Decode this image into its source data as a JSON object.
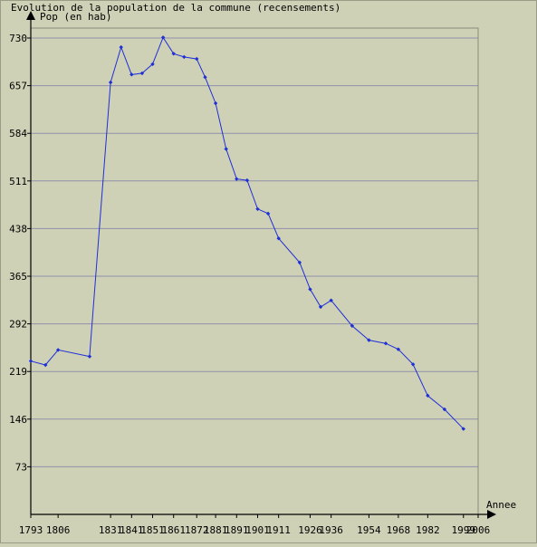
{
  "chart_data": {
    "type": "line",
    "title": "Evolution de la population de la commune (recensements)",
    "ylabel": "Pop (en hab)",
    "xlabel": "Annee",
    "yticks": [
      73,
      146,
      219,
      292,
      365,
      438,
      511,
      584,
      657,
      730
    ],
    "ylim": [
      0,
      730
    ],
    "xticks": [
      "1793",
      "1806",
      "1831",
      "1841",
      "1851",
      "1861",
      "1872",
      "1881",
      "1891",
      "1901",
      "1911",
      "1926",
      "1936",
      "1954",
      "1968",
      "1982",
      "1999",
      "2006"
    ],
    "grid": "horizontal",
    "series": [
      {
        "color": "#1f2fd6",
        "x": [
          "1793",
          "1800",
          "1806",
          "1821",
          "1831",
          "1836",
          "1841",
          "1846",
          "1851",
          "1856",
          "1861",
          "1866",
          "1872",
          "1876",
          "1881",
          "1886",
          "1891",
          "1896",
          "1901",
          "1906",
          "1911",
          "1921",
          "1926",
          "1931",
          "1936",
          "1946",
          "1954",
          "1962",
          "1968",
          "1975",
          "1982",
          "1990",
          "1999"
        ],
        "values": [
          235,
          229,
          252,
          242,
          662,
          716,
          674,
          676,
          690,
          731,
          706,
          701,
          698,
          670,
          630,
          560,
          514,
          512,
          468,
          461,
          423,
          386,
          345,
          318,
          328,
          289,
          267,
          262,
          253,
          230,
          182,
          161,
          131
        ]
      }
    ]
  }
}
